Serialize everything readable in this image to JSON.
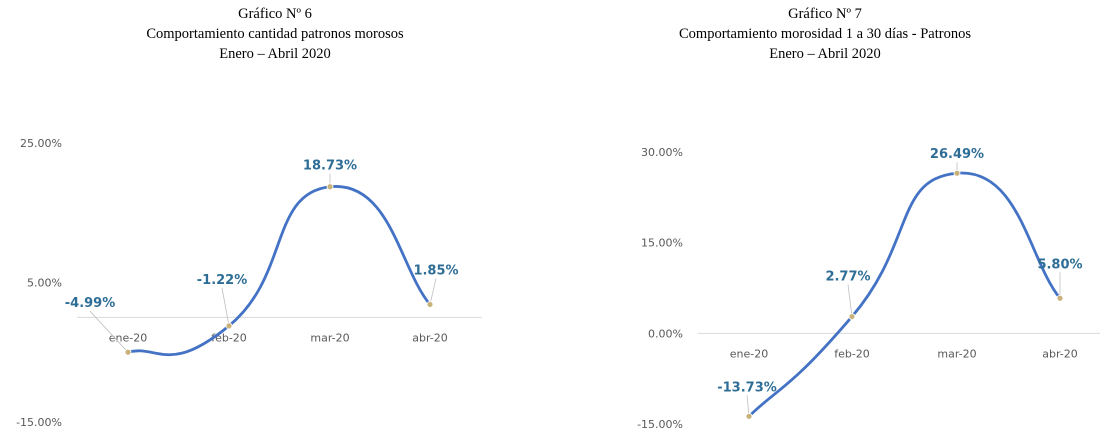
{
  "chart_data": [
    {
      "type": "line",
      "title": "Gráfico Nº 6",
      "subtitle": "Comportamiento cantidad patronos morosos",
      "period": "Enero – Abril 2020",
      "categories": [
        "ene-20",
        "feb-20",
        "mar-20",
        "abr-20"
      ],
      "series": [
        {
          "values": [
            -4.99,
            -1.22,
            18.73,
            1.85
          ],
          "labels": [
            "-4.99%",
            "-1.22%",
            "18.73%",
            "1.85%"
          ]
        }
      ],
      "yticks": [
        "25.00%",
        "5.00%",
        "-15.00%"
      ],
      "ylim": [
        -15,
        25
      ],
      "grid": false,
      "line_color": "#4472C4",
      "marker_color": "#C9B27A",
      "label_color": "#2E6E96"
    },
    {
      "type": "line",
      "title": "Gráfico Nº 7",
      "subtitle": "Comportamiento morosidad 1 a 30 días - Patronos",
      "period": "Enero – Abril 2020",
      "categories": [
        "ene-20",
        "feb-20",
        "mar-20",
        "abr-20"
      ],
      "series": [
        {
          "values": [
            -13.73,
            2.77,
            26.49,
            5.8
          ],
          "labels": [
            "-13.73%",
            "2.77%",
            "26.49%",
            "5.80%"
          ]
        }
      ],
      "yticks": [
        "30.00%",
        "15.00%",
        "0.00%",
        "-15.00%"
      ],
      "ylim": [
        -15,
        30
      ],
      "grid": false,
      "line_color": "#4472C4",
      "marker_color": "#C9B27A",
      "label_color": "#2E6E96"
    }
  ]
}
